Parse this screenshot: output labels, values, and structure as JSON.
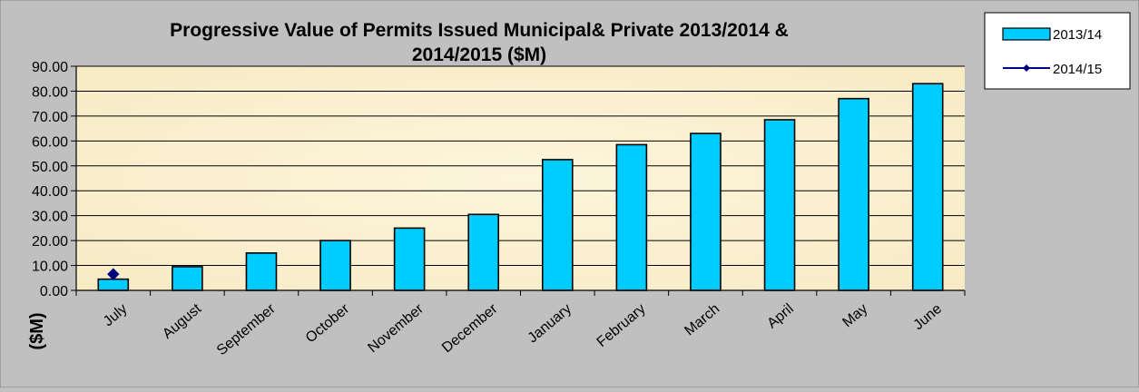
{
  "chart_data": {
    "type": "bar",
    "title_line1": "Progressive Value of Permits Issued Municipal& Private 2013/2014 &",
    "title_line2": "2014/2015  ($M)",
    "xlabel": "",
    "ylabel": "($M)",
    "ylim": [
      0,
      90
    ],
    "yticks": [
      "0.00",
      "10.00",
      "20.00",
      "30.00",
      "40.00",
      "50.00",
      "60.00",
      "70.00",
      "80.00",
      "90.00"
    ],
    "grid": true,
    "legend_position": "top-right",
    "categories": [
      "July",
      "August",
      "September",
      "October",
      "November",
      "December",
      "January",
      "February",
      "March",
      "April",
      "May",
      "June"
    ],
    "series": [
      {
        "name": "2013/14",
        "kind": "bar",
        "color": "#00ccff",
        "values": [
          4.5,
          9.5,
          15,
          20,
          25,
          30.5,
          52.5,
          58.5,
          63,
          68.5,
          77,
          83
        ]
      },
      {
        "name": "2014/15",
        "kind": "line",
        "color": "#000080",
        "values": [
          6.5,
          null,
          null,
          null,
          null,
          null,
          null,
          null,
          null,
          null,
          null,
          null
        ]
      }
    ],
    "plot_background": "#fdf3d6"
  }
}
